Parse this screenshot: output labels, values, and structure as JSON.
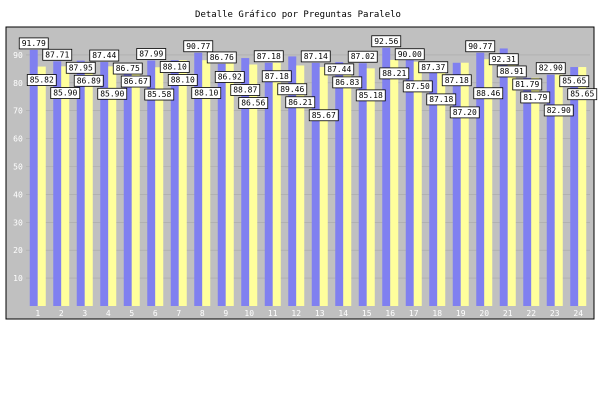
{
  "chart_data": {
    "type": "bar",
    "title": "Detalle Gráfico por Preguntas Paralelo",
    "categories": [
      "1",
      "2",
      "3",
      "4",
      "5",
      "6",
      "7",
      "8",
      "9",
      "10",
      "11",
      "12",
      "13",
      "14",
      "15",
      "16",
      "17",
      "18",
      "19",
      "20",
      "21",
      "22",
      "23",
      "24"
    ],
    "series": [
      {
        "values": [
          91.79,
          87.71,
          87.95,
          87.44,
          86.75,
          87.99,
          88.1,
          90.77,
          86.76,
          88.87,
          87.18,
          89.46,
          87.14,
          87.44,
          87.02,
          92.56,
          90.0,
          87.37,
          87.18,
          90.77,
          92.31,
          81.79,
          82.9,
          85.65
        ],
        "color": "#8080f0"
      },
      {
        "values": [
          85.82,
          85.9,
          86.89,
          85.9,
          86.67,
          85.58,
          88.1,
          88.1,
          86.92,
          86.56,
          87.18,
          86.21,
          85.67,
          86.83,
          85.18,
          88.21,
          87.5,
          87.18,
          87.2,
          88.46,
          88.91,
          81.79,
          82.9,
          85.65
        ],
        "color": "#ffff9c"
      }
    ],
    "ylim": [
      0,
      100
    ],
    "yticks": [
      10,
      20,
      30,
      40,
      50,
      60,
      70,
      80,
      90
    ],
    "grid": true,
    "legend": "none",
    "colors": {
      "plot_bg": "#c0c0c0",
      "frame": "#000000"
    }
  }
}
